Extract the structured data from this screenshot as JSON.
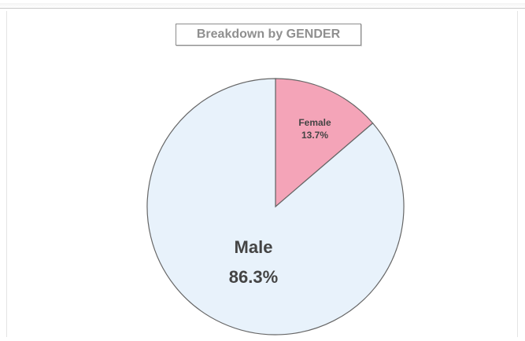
{
  "chart_data": {
    "type": "pie",
    "title": "Breakdown by GENDER",
    "slices": [
      {
        "label": "Female",
        "value": 13.7,
        "value_label": "13.7%",
        "color": "#f4a4b8"
      },
      {
        "label": "Male",
        "value": 86.3,
        "value_label": "86.3%",
        "color": "#e8f2fb"
      }
    ],
    "start_angle": "top, clockwise",
    "edge_color": "#666666",
    "label_color": "#444444"
  }
}
